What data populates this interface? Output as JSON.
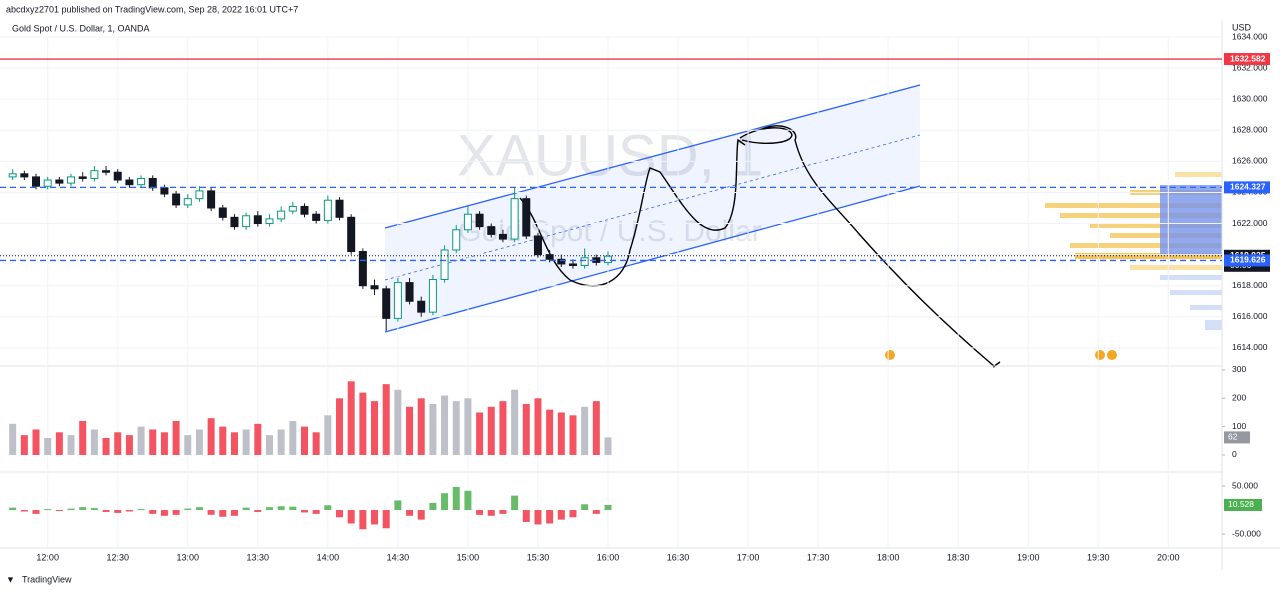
{
  "header": {
    "publisher": "abcdxyz2701 published on TradingView.com, Sep 28, 2022 16:01 UTC+7",
    "symbol": "Gold Spot / U.S. Dollar, 1, OANDA",
    "currency": "USD",
    "watermark_ticker": "XAUUSD, 1",
    "watermark_name": "Gold Spot / U.S. Dollar",
    "footer": "TradingView"
  },
  "price_labels": [
    {
      "value": 1632.582,
      "label": "1632.582",
      "color": "#f23645",
      "style": "solid"
    },
    {
      "value": 1624.327,
      "label": "1624.327",
      "color": "#2962ff",
      "style": "dashed"
    },
    {
      "value": 1619.925,
      "label": "1619.925",
      "color": "#131722",
      "style": "dotted",
      "countdown": "00:06"
    },
    {
      "value": 1619.626,
      "label": "1619.626",
      "color": "#2962ff",
      "style": "dashed"
    }
  ],
  "chart_data": [
    {
      "type": "candlestick",
      "up_color": "#089981",
      "down_color": "#131722",
      "up_body": "#ffffff",
      "x": [
        "11:45",
        "11:50",
        "11:55",
        "12:00",
        "12:05",
        "12:10",
        "12:15",
        "12:20",
        "12:25",
        "12:30",
        "12:35",
        "12:40",
        "12:45",
        "12:50",
        "12:55",
        "13:00",
        "13:05",
        "13:10",
        "13:15",
        "13:20",
        "13:25",
        "13:30",
        "13:35",
        "13:40",
        "13:45",
        "13:50",
        "13:55",
        "14:00",
        "14:05",
        "14:10",
        "14:15",
        "14:20",
        "14:25",
        "14:30",
        "14:35",
        "14:40",
        "14:45",
        "14:50",
        "14:55",
        "15:00",
        "15:05",
        "15:10",
        "15:15",
        "15:20",
        "15:25",
        "15:30",
        "15:35",
        "15:40",
        "15:45",
        "15:50",
        "15:55",
        "16:00"
      ],
      "open": [
        1625.0,
        1625.2,
        1625.0,
        1624.4,
        1624.8,
        1624.6,
        1625.0,
        1624.9,
        1625.4,
        1625.3,
        1624.8,
        1624.5,
        1624.9,
        1624.3,
        1623.9,
        1623.2,
        1623.6,
        1624.1,
        1623.0,
        1622.4,
        1621.8,
        1622.5,
        1622.0,
        1622.3,
        1622.8,
        1623.1,
        1622.6,
        1622.2,
        1623.5,
        1622.4,
        1620.2,
        1618.0,
        1617.8,
        1615.9,
        1618.2,
        1617.0,
        1616.3,
        1618.4,
        1620.3,
        1621.6,
        1622.6,
        1621.8,
        1621.3,
        1621.0,
        1623.6,
        1621.2,
        1620.0,
        1619.7,
        1619.4,
        1619.3,
        1619.8,
        1619.5
      ],
      "high": [
        1625.5,
        1625.4,
        1625.2,
        1625.0,
        1625.0,
        1625.2,
        1625.3,
        1625.7,
        1625.7,
        1625.5,
        1625.0,
        1625.1,
        1625.1,
        1624.5,
        1624.1,
        1623.9,
        1624.4,
        1624.3,
        1623.2,
        1622.6,
        1622.7,
        1622.8,
        1622.6,
        1623.1,
        1623.4,
        1623.3,
        1622.8,
        1623.8,
        1623.7,
        1622.6,
        1620.4,
        1618.4,
        1618.0,
        1618.5,
        1618.5,
        1617.3,
        1618.7,
        1620.6,
        1621.9,
        1623.2,
        1622.8,
        1622.0,
        1621.6,
        1624.3,
        1623.8,
        1621.4,
        1620.3,
        1620.0,
        1619.7,
        1620.4,
        1620.0,
        1620.2
      ],
      "low": [
        1624.8,
        1624.8,
        1624.2,
        1624.2,
        1624.4,
        1624.4,
        1624.7,
        1624.7,
        1625.1,
        1624.6,
        1624.3,
        1624.3,
        1624.1,
        1623.7,
        1623.0,
        1623.0,
        1623.4,
        1622.8,
        1622.2,
        1621.6,
        1621.6,
        1621.8,
        1621.8,
        1622.1,
        1622.6,
        1622.4,
        1622.0,
        1622.0,
        1622.2,
        1620.0,
        1617.8,
        1617.4,
        1615.1,
        1615.7,
        1616.8,
        1616.0,
        1616.1,
        1618.2,
        1620.1,
        1621.4,
        1621.6,
        1621.1,
        1620.8,
        1620.8,
        1621.0,
        1619.8,
        1619.5,
        1619.2,
        1619.1,
        1619.1,
        1619.3,
        1619.3
      ],
      "close": [
        1625.2,
        1625.0,
        1624.4,
        1624.8,
        1624.6,
        1625.0,
        1624.9,
        1625.4,
        1625.3,
        1624.8,
        1624.5,
        1624.9,
        1624.3,
        1623.9,
        1623.2,
        1623.6,
        1624.1,
        1623.0,
        1622.4,
        1621.8,
        1622.5,
        1622.0,
        1622.3,
        1622.8,
        1623.1,
        1622.6,
        1622.2,
        1623.5,
        1622.4,
        1620.2,
        1618.0,
        1617.8,
        1615.9,
        1618.2,
        1617.0,
        1616.3,
        1618.4,
        1620.3,
        1621.6,
        1622.6,
        1621.8,
        1621.3,
        1621.0,
        1623.6,
        1621.2,
        1620.0,
        1619.7,
        1619.4,
        1619.3,
        1619.8,
        1619.5,
        1619.9
      ],
      "xlim": [
        "11:40",
        "20:23"
      ],
      "xticks": [
        "12:00",
        "12:30",
        "13:00",
        "13:30",
        "14:00",
        "14:30",
        "15:00",
        "15:30",
        "16:00",
        "16:30",
        "17:00",
        "17:30",
        "18:00",
        "18:30",
        "19:00",
        "19:30",
        "20:00"
      ],
      "ylim": [
        1612.9,
        1634.0
      ],
      "yticks": [
        {
          "value": 1614,
          "label": "1614.000"
        },
        {
          "value": 1616,
          "label": "1616.000"
        },
        {
          "value": 1618,
          "label": "1618.000"
        },
        {
          "value": 1620,
          "label": "1620.000"
        },
        {
          "value": 1622,
          "label": "1622.000"
        },
        {
          "value": 1624,
          "label": "1624.000"
        },
        {
          "value": 1626,
          "label": "1626.000"
        },
        {
          "value": 1628,
          "label": "1628.000"
        },
        {
          "value": 1630,
          "label": "1630.000"
        },
        {
          "value": 1632,
          "label": "1632.000"
        },
        {
          "value": 1634,
          "label": "1634.000"
        }
      ],
      "grid": true
    },
    {
      "type": "bar",
      "name": "volume",
      "up_color": "#b2b5be",
      "down_color": "#f23645",
      "values": [
        110,
        70,
        90,
        60,
        80,
        70,
        120,
        90,
        60,
        80,
        70,
        100,
        90,
        80,
        120,
        70,
        90,
        130,
        100,
        80,
        90,
        110,
        70,
        90,
        120,
        100,
        80,
        140,
        200,
        260,
        220,
        190,
        250,
        230,
        170,
        200,
        180,
        210,
        190,
        200,
        150,
        170,
        190,
        230,
        180,
        200,
        160,
        150,
        140,
        170,
        190,
        62
      ],
      "ylim": [
        -53,
        314
      ],
      "yticks": [
        0,
        100,
        200,
        300
      ],
      "last_label": "62"
    },
    {
      "type": "bar",
      "name": "oscillator",
      "up_color": "#4caf50",
      "down_color": "#f23645",
      "values": [
        5,
        -3,
        -8,
        2,
        -2,
        3,
        6,
        4,
        -4,
        -6,
        -3,
        2,
        -8,
        -12,
        -10,
        3,
        6,
        -10,
        -14,
        -12,
        5,
        -4,
        6,
        8,
        7,
        -5,
        -8,
        10,
        -15,
        -28,
        -40,
        -30,
        -38,
        20,
        -12,
        -20,
        15,
        35,
        48,
        40,
        -10,
        -12,
        -8,
        30,
        -25,
        -30,
        -28,
        -20,
        -15,
        12,
        -8,
        10.528
      ],
      "ylim": [
        -79,
        75
      ],
      "yticks": [
        {
          "value": 50,
          "label": "50.000"
        },
        {
          "value": -50,
          "label": "-50.000"
        }
      ],
      "last_label": "10.528"
    }
  ]
}
